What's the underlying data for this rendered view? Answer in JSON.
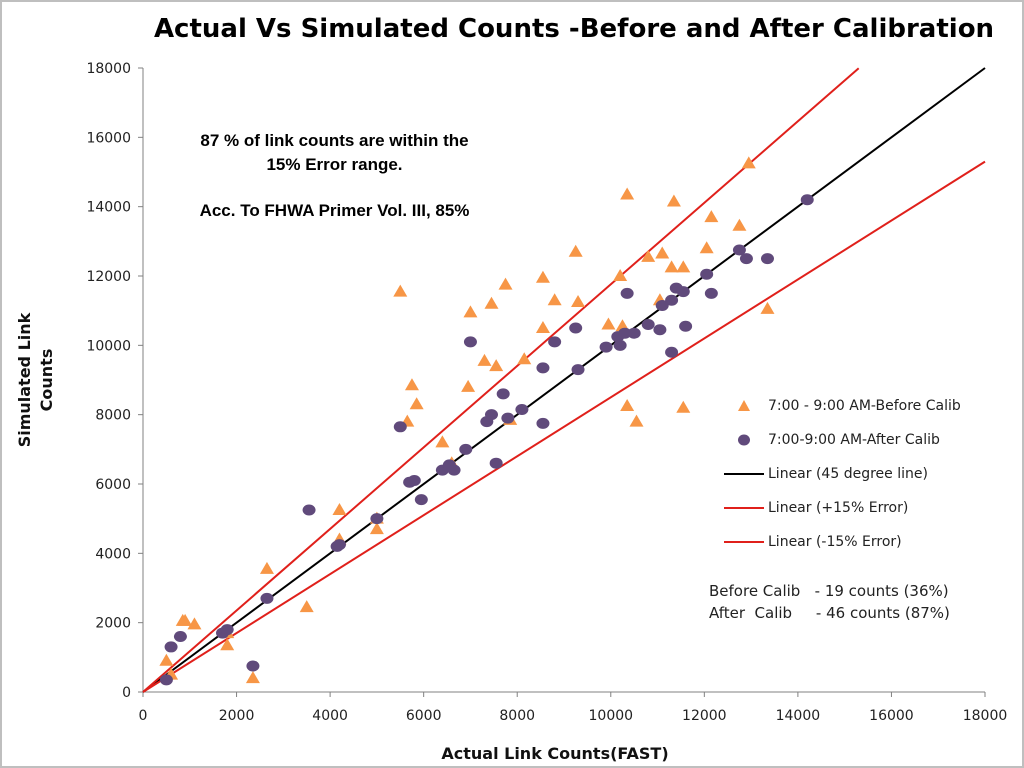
{
  "title": "Actual Vs Simulated Counts -Before and After Calibration",
  "notes": {
    "line1": "87 % of link counts are within the",
    "line2": "15% Error range.",
    "line3": "Acc. To FHWA Primer Vol. III,  85%"
  },
  "summary": {
    "before": "Before Calib   - 19 counts (36%)",
    "after": "After  Calib     - 46 counts (87%)"
  },
  "colors": {
    "before": "#f79646",
    "after": "#604a7b",
    "equal_line": "#000000",
    "error_lines": "#e0201b",
    "axis": "#808080"
  },
  "chart_data": {
    "type": "scatter",
    "title": "Actual Vs Simulated Counts -Before and After Calibration",
    "xlabel": "Actual Link Counts(FAST)",
    "ylabel": "Simulated Link Counts",
    "xlim": [
      0,
      18000
    ],
    "ylim": [
      0,
      18000
    ],
    "xticks": [
      "0",
      "2000",
      "4000",
      "6000",
      "8000",
      "10000",
      "12000",
      "14000",
      "16000",
      "18000"
    ],
    "yticks": [
      "0",
      "2000",
      "4000",
      "6000",
      "8000",
      "10000",
      "12000",
      "14000",
      "16000",
      "18000"
    ],
    "grid": false,
    "legend_position": "right",
    "series": [
      {
        "name": "7:00 - 9:00 AM-Before  Calib",
        "marker": "triangle",
        "color": "#f79646",
        "points": [
          [
            500,
            900
          ],
          [
            600,
            500
          ],
          [
            850,
            2050
          ],
          [
            900,
            2050
          ],
          [
            1100,
            1950
          ],
          [
            1800,
            1700
          ],
          [
            1800,
            1350
          ],
          [
            2350,
            400
          ],
          [
            2650,
            3550
          ],
          [
            3500,
            2450
          ],
          [
            4200,
            5250
          ],
          [
            4200,
            4400
          ],
          [
            5000,
            4700
          ],
          [
            5000,
            5000
          ],
          [
            5500,
            11550
          ],
          [
            5650,
            7800
          ],
          [
            5750,
            8850
          ],
          [
            5850,
            8300
          ],
          [
            6400,
            7200
          ],
          [
            6600,
            6600
          ],
          [
            6950,
            8800
          ],
          [
            7000,
            10950
          ],
          [
            7300,
            9550
          ],
          [
            7450,
            11200
          ],
          [
            7550,
            9400
          ],
          [
            7750,
            11750
          ],
          [
            7850,
            7850
          ],
          [
            8150,
            9600
          ],
          [
            8550,
            10500
          ],
          [
            8550,
            11950
          ],
          [
            8800,
            11300
          ],
          [
            9250,
            12700
          ],
          [
            9300,
            11250
          ],
          [
            9950,
            10600
          ],
          [
            10200,
            12000
          ],
          [
            10250,
            10550
          ],
          [
            10350,
            8250
          ],
          [
            10350,
            14350
          ],
          [
            10550,
            7800
          ],
          [
            10800,
            12550
          ],
          [
            11050,
            11300
          ],
          [
            11100,
            12650
          ],
          [
            11300,
            12250
          ],
          [
            11350,
            14150
          ],
          [
            11550,
            12250
          ],
          [
            11550,
            8200
          ],
          [
            12050,
            12800
          ],
          [
            12150,
            13700
          ],
          [
            12750,
            13450
          ],
          [
            12950,
            15250
          ],
          [
            13350,
            11050
          ]
        ]
      },
      {
        "name": "7:00-9:00 AM-After Calib",
        "marker": "circle",
        "color": "#604a7b",
        "points": [
          [
            500,
            350
          ],
          [
            600,
            1300
          ],
          [
            800,
            1600
          ],
          [
            1700,
            1700
          ],
          [
            1800,
            1800
          ],
          [
            2350,
            750
          ],
          [
            2650,
            2700
          ],
          [
            3550,
            5250
          ],
          [
            4150,
            4200
          ],
          [
            4200,
            4250
          ],
          [
            5000,
            5000
          ],
          [
            5500,
            7650
          ],
          [
            5700,
            6050
          ],
          [
            5800,
            6100
          ],
          [
            5950,
            5550
          ],
          [
            6400,
            6400
          ],
          [
            6550,
            6550
          ],
          [
            6650,
            6400
          ],
          [
            6900,
            7000
          ],
          [
            7000,
            10100
          ],
          [
            7350,
            7800
          ],
          [
            7450,
            8000
          ],
          [
            7550,
            6600
          ],
          [
            7700,
            8600
          ],
          [
            7800,
            7900
          ],
          [
            8100,
            8150
          ],
          [
            8550,
            9350
          ],
          [
            8550,
            7750
          ],
          [
            8800,
            10100
          ],
          [
            9250,
            10500
          ],
          [
            9300,
            9300
          ],
          [
            9900,
            9950
          ],
          [
            10150,
            10250
          ],
          [
            10200,
            10000
          ],
          [
            10300,
            10350
          ],
          [
            10350,
            11500
          ],
          [
            10500,
            10350
          ],
          [
            10800,
            10600
          ],
          [
            11050,
            10450
          ],
          [
            11100,
            11150
          ],
          [
            11300,
            9800
          ],
          [
            11300,
            11300
          ],
          [
            11400,
            11650
          ],
          [
            11550,
            11550
          ],
          [
            11600,
            10550
          ],
          [
            12050,
            12050
          ],
          [
            12150,
            11500
          ],
          [
            12750,
            12750
          ],
          [
            12900,
            12500
          ],
          [
            13350,
            12500
          ],
          [
            14200,
            14200
          ]
        ]
      },
      {
        "name": "Linear (45 degree line)",
        "marker": "line",
        "color": "#000000",
        "slope": 1.0,
        "x_range": [
          0,
          18000
        ]
      },
      {
        "name": "Linear (+15% Error)",
        "marker": "line",
        "color": "#e0201b",
        "slope": 1.176,
        "x_range": [
          0,
          15300
        ]
      },
      {
        "name": "Linear (-15% Error)",
        "marker": "line",
        "color": "#e0201b",
        "slope": 0.85,
        "x_range": [
          0,
          18000
        ]
      }
    ]
  }
}
